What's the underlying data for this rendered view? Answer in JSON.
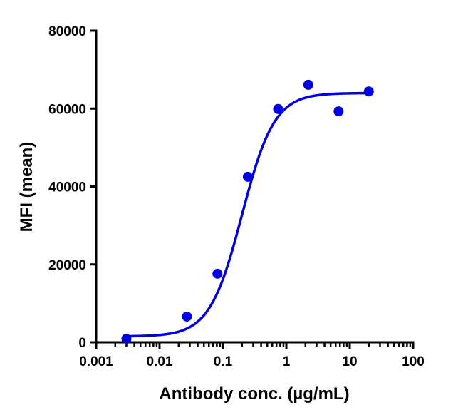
{
  "chart_data": {
    "type": "scatter",
    "title": "",
    "xlabel": "Antibody conc. (µg/mL)",
    "ylabel": "MFI (mean)",
    "xscale": "log",
    "xlim": [
      0.001,
      100
    ],
    "ylim": [
      0,
      80000
    ],
    "x_ticks": [
      "0.001",
      "0.01",
      "0.1",
      "1",
      "10",
      "100"
    ],
    "y_ticks": [
      "0",
      "20000",
      "40000",
      "60000",
      "80000"
    ],
    "grid": false,
    "legend": null,
    "series": [
      {
        "name": "MFI",
        "color": "#0000e0",
        "marker": "circle",
        "x": [
          0.003,
          0.027,
          0.082,
          0.247,
          0.741,
          2.22,
          6.67,
          20
        ],
        "y": [
          900,
          6600,
          17600,
          42500,
          59900,
          66100,
          59300,
          64400
        ]
      }
    ],
    "fit": {
      "type": "4PL",
      "color": "#0000e0",
      "bottom": 1500,
      "top": 64000,
      "ec50": 0.2,
      "hill": 1.7,
      "x_range": [
        0.003,
        20
      ]
    }
  }
}
